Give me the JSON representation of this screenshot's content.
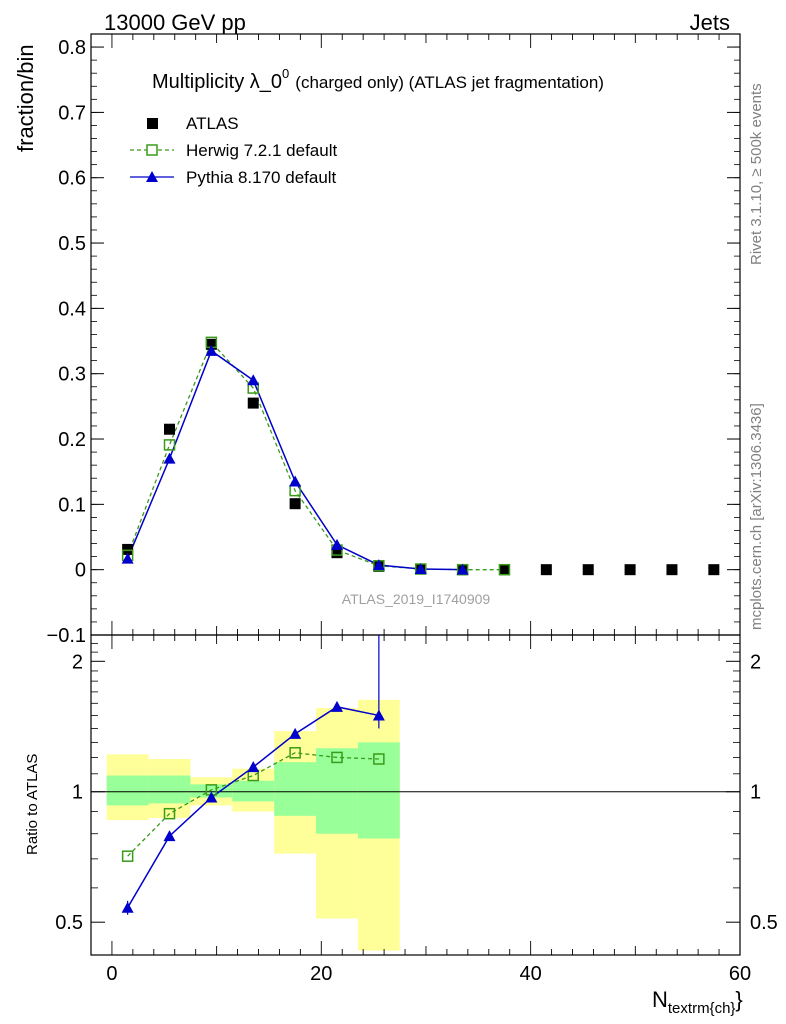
{
  "header": {
    "energy": "13000 GeV pp",
    "category": "Jets"
  },
  "title": {
    "main": "Multiplicity λ_0",
    "sup": "0",
    "suffix": "(charged only) (ATLAS jet fragmentation)"
  },
  "side": {
    "rivet": "Rivet 3.1.10, ≥ 500k events",
    "mcplots": "mcplots.cern.ch [arXiv:1306.3436]"
  },
  "watermark": "ATLAS_2019_I1740909",
  "colors": {
    "atlas": "#000000",
    "herwig": "#3a9a1a",
    "pythia": "#0000cc",
    "band_outer": "#ffff99",
    "band_inner": "#99ff99"
  },
  "chart_data": [
    {
      "type": "scatter",
      "xlabel": "N",
      "xlabel_sub": "textrm{ch}",
      "xlabel_close": "}",
      "ylabel": "fraction/bin",
      "xlim": [
        -2,
        60
      ],
      "ylim": [
        -0.1,
        0.82
      ],
      "x_ticks": [
        0,
        20,
        40,
        60
      ],
      "y_ticks": [
        -0.1,
        0,
        0.1,
        0.2,
        0.3,
        0.4,
        0.5,
        0.6,
        0.7,
        0.8
      ],
      "y_tick_labels": [
        "−0.1",
        "0",
        "0.1",
        "0.2",
        "0.3",
        "0.4",
        "0.5",
        "0.6",
        "0.7",
        "0.8"
      ],
      "legend_position": "top-left",
      "series": [
        {
          "name": "ATLAS",
          "marker": "filled-square",
          "x": [
            1.5,
            5.5,
            9.5,
            13.5,
            17.5,
            21.5,
            25.5,
            29.5,
            33.5,
            37.5,
            41.5,
            45.5,
            49.5,
            53.5,
            57.5
          ],
          "y": [
            0.031,
            0.215,
            0.345,
            0.255,
            0.101,
            0.026,
            0.005,
            0.001,
            0.0,
            0.0,
            0.0,
            0.0,
            0.0,
            0.0,
            0.0
          ]
        },
        {
          "name": "Herwig 7.2.1 default",
          "marker": "open-square",
          "line": "dashed",
          "x": [
            1.5,
            5.5,
            9.5,
            13.5,
            17.5,
            21.5,
            25.5,
            29.5,
            33.5,
            37.5
          ],
          "y": [
            0.022,
            0.191,
            0.348,
            0.278,
            0.121,
            0.03,
            0.006,
            0.001,
            0.0,
            0.0
          ]
        },
        {
          "name": "Pythia 8.170 default",
          "marker": "filled-triangle",
          "line": "solid",
          "x": [
            1.5,
            5.5,
            9.5,
            13.5,
            17.5,
            21.5,
            25.5,
            29.5,
            33.5
          ],
          "y": [
            0.017,
            0.17,
            0.335,
            0.29,
            0.135,
            0.038,
            0.007,
            0.001,
            0.0
          ]
        }
      ]
    },
    {
      "type": "line",
      "ylabel": "Ratio to ATLAS",
      "log_y": true,
      "xlim": [
        -2,
        60
      ],
      "ylim": [
        0.42,
        2.3
      ],
      "y_ticks": [
        0.5,
        1,
        2
      ],
      "y_tick_labels": [
        "0.5",
        "1",
        "2"
      ],
      "bands": {
        "bin_edges": [
          -0.5,
          3.5,
          7.5,
          11.5,
          15.5,
          19.5,
          23.5,
          27.5
        ],
        "outer_low": [
          0.86,
          0.87,
          0.93,
          0.9,
          0.72,
          0.51,
          0.43
        ],
        "outer_high": [
          1.22,
          1.19,
          1.08,
          1.13,
          1.38,
          1.56,
          1.63
        ],
        "inner_low": [
          0.93,
          0.94,
          0.97,
          0.95,
          0.88,
          0.8,
          0.78
        ],
        "inner_high": [
          1.09,
          1.09,
          1.04,
          1.06,
          1.17,
          1.26,
          1.3
        ]
      },
      "series": [
        {
          "name": "Herwig 7.2.1 default",
          "x": [
            1.5,
            5.5,
            9.5,
            13.5,
            17.5,
            21.5,
            25.5
          ],
          "y": [
            0.71,
            0.89,
            1.01,
            1.09,
            1.23,
            1.2,
            1.19
          ]
        },
        {
          "name": "Pythia 8.170 default",
          "x": [
            1.5,
            5.5,
            9.5,
            13.5,
            17.5,
            21.5,
            25.5
          ],
          "y": [
            0.54,
            0.79,
            0.97,
            1.14,
            1.36,
            1.57,
            1.5
          ],
          "err_low": [
            0.52,
            0.78,
            0.96,
            1.13,
            1.35,
            1.54,
            1.4
          ],
          "err_high": [
            0.56,
            0.8,
            0.98,
            1.15,
            1.37,
            1.6,
            2.3
          ]
        }
      ]
    }
  ]
}
